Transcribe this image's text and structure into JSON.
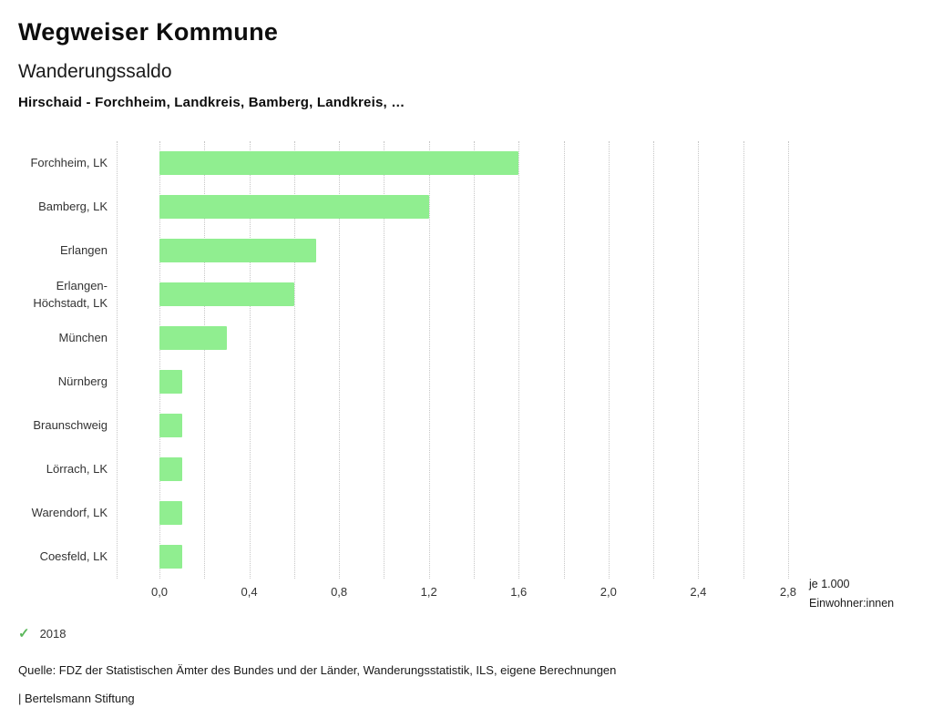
{
  "header": {
    "title": "Wegweiser Kommune",
    "subtitle": "Wanderungssaldo",
    "selection": "Hirschaid - Forchheim, Landkreis, Bamberg, Landkreis, …"
  },
  "chart_data": {
    "type": "bar",
    "orientation": "horizontal",
    "title": "Wanderungssaldo",
    "subtitle": "Hirschaid - Forchheim, Landkreis, Bamberg, Landkreis, …",
    "categories": [
      "Forchheim, LK",
      "Bamberg, LK",
      "Erlangen",
      "Erlangen-Höchstadt, LK",
      "München",
      "Nürnberg",
      "Braunschweig",
      "Lörrach, LK",
      "Warendorf, LK",
      "Coesfeld, LK"
    ],
    "series": [
      {
        "name": "2018",
        "values": [
          1.6,
          1.2,
          0.7,
          0.6,
          0.3,
          0.1,
          0.1,
          0.1,
          0.1,
          0.1
        ]
      }
    ],
    "xlim": [
      0,
      2.8
    ],
    "xticks": [
      0,
      0.4,
      0.8,
      1.2,
      1.6,
      2.0,
      2.4,
      2.8
    ],
    "xtick_labels": [
      "0,0",
      "0,4",
      "0,8",
      "1,2",
      "1,6",
      "2,0",
      "2,4",
      "2,8"
    ],
    "xlabel": "je 1.000 Einwohner:innen",
    "unit_lines": [
      "je 1.000",
      "Einwohner:innen"
    ],
    "ylabel": "",
    "grid": true,
    "gridline_step": 0.2,
    "legend_position": "bottom-left",
    "bar_color": "#90ee90",
    "legend_color": "#5cb85c"
  },
  "icons": {
    "check": "✓"
  },
  "footer": {
    "source": "Quelle: FDZ der Statistischen Ämter des Bundes und der Länder, Wanderungsstatistik, ILS, eigene Berechnungen",
    "attribution": "| Bertelsmann Stiftung"
  }
}
